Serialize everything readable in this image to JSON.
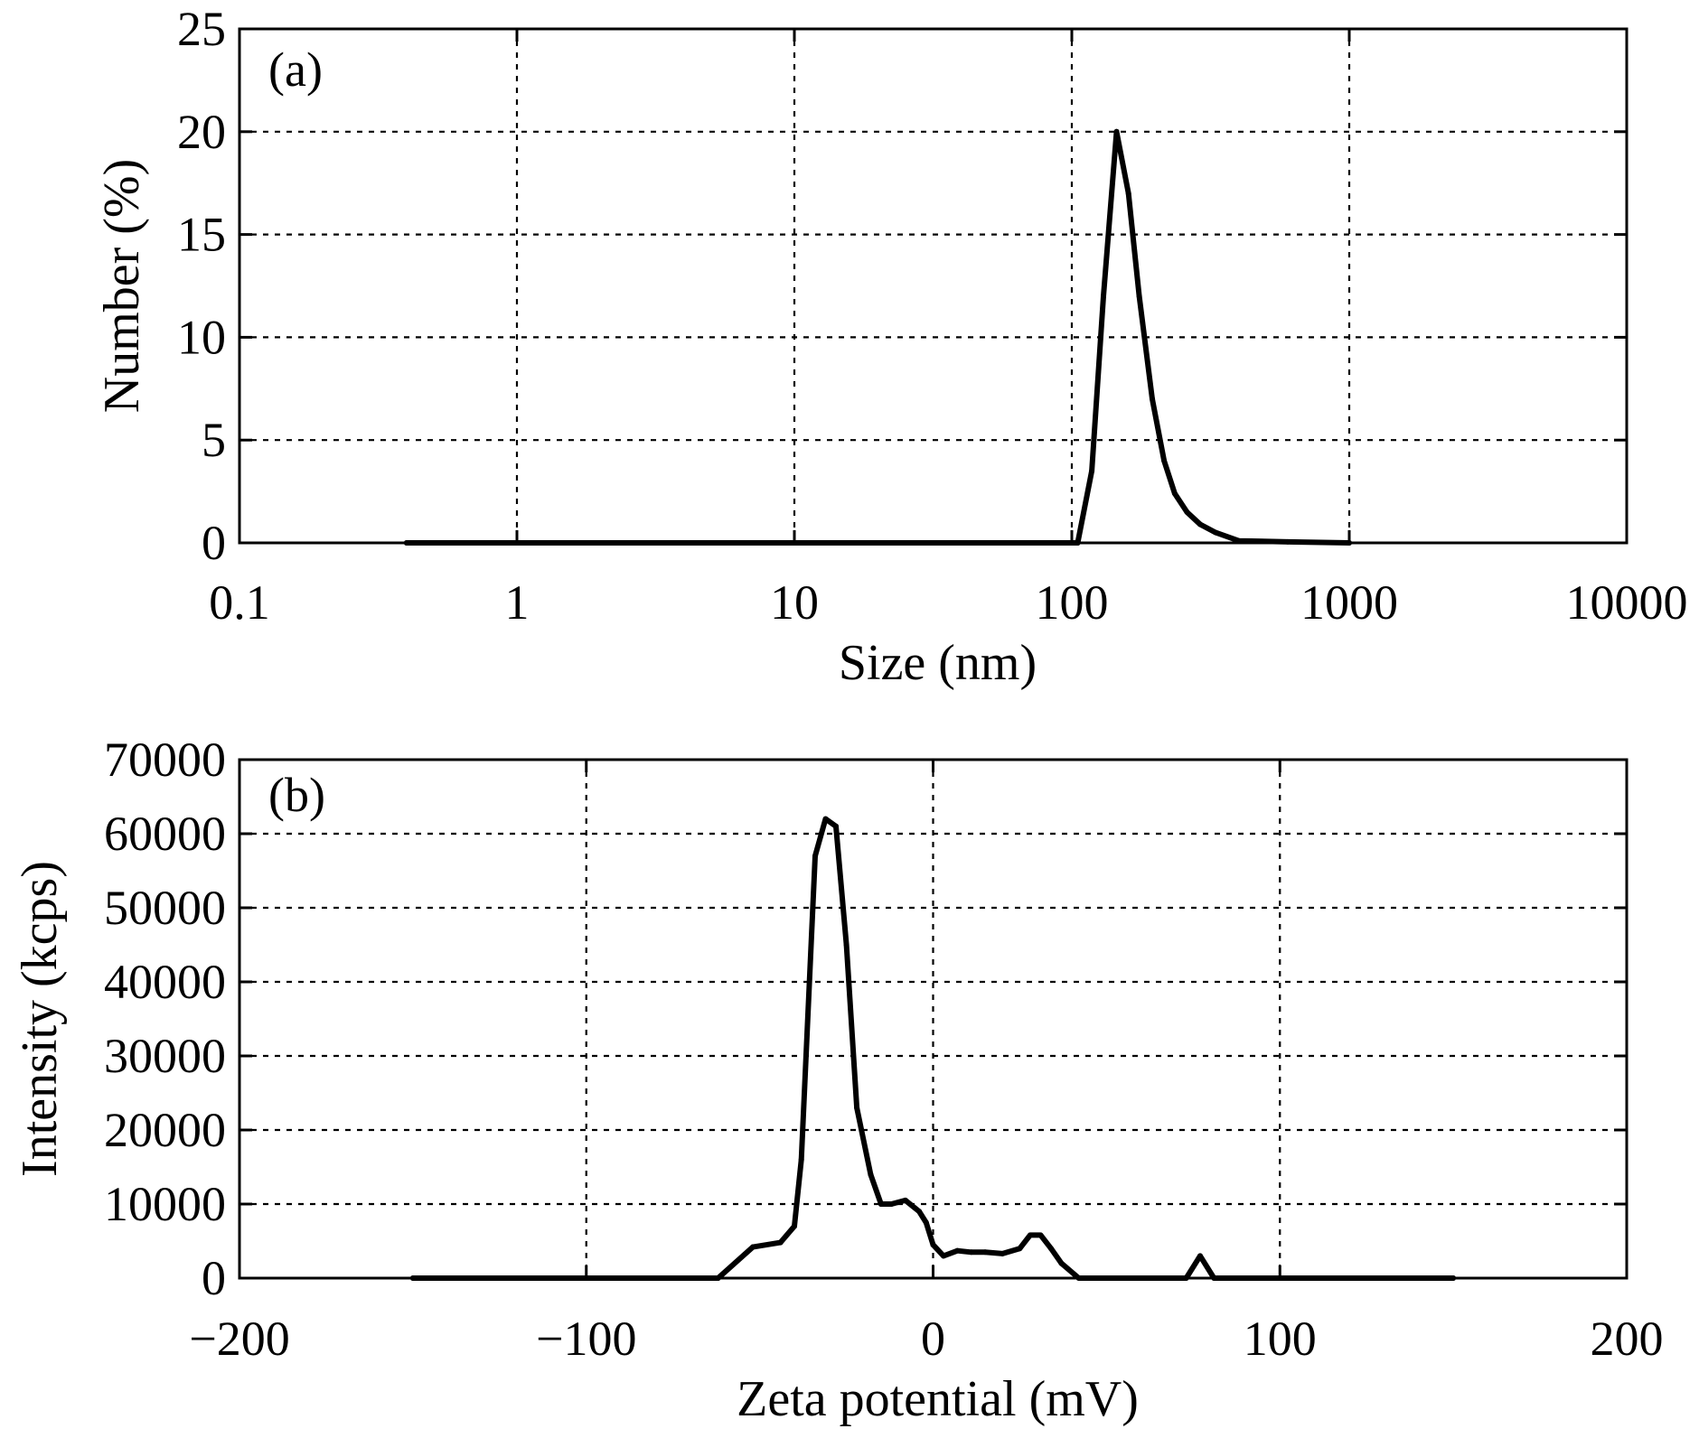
{
  "chart_data": [
    {
      "type": "line",
      "panel_label": "(a)",
      "xlabel": "Size (nm)",
      "ylabel": "Number (%)",
      "xscale": "log",
      "xlim": [
        0.1,
        10000
      ],
      "ylim": [
        0,
        25
      ],
      "grid": true,
      "xticks": [
        0.1,
        1,
        10,
        100,
        1000,
        10000
      ],
      "xtick_labels": [
        "0.1",
        "1",
        "10",
        "100",
        "1000",
        "10000"
      ],
      "yticks": [
        0,
        5,
        10,
        15,
        20,
        25
      ],
      "ytick_labels": [
        "0",
        "5",
        "10",
        "15",
        "20",
        "25"
      ],
      "series": [
        {
          "color": "#000000",
          "x": [
            0.4,
            1,
            10,
            50,
            105,
            118,
            130,
            145,
            160,
            175,
            195,
            215,
            235,
            260,
            290,
            330,
            400,
            600,
            1000
          ],
          "y": [
            0,
            0,
            0,
            0,
            0,
            3.5,
            12,
            20,
            17,
            12,
            7,
            4,
            2.4,
            1.5,
            0.9,
            0.5,
            0.1,
            0.05,
            0
          ]
        }
      ]
    },
    {
      "type": "line",
      "panel_label": "(b)",
      "xlabel": "Zeta potential (mV)",
      "ylabel": "Intensity (kcps)",
      "xscale": "linear",
      "xlim": [
        -200,
        200
      ],
      "ylim": [
        0,
        70000
      ],
      "grid": true,
      "xticks": [
        -200,
        -100,
        0,
        100,
        200
      ],
      "xtick_labels": [
        "−200",
        "−100",
        "0",
        "100",
        "200"
      ],
      "yticks": [
        0,
        10000,
        20000,
        30000,
        40000,
        50000,
        60000,
        70000
      ],
      "ytick_labels": [
        "0",
        "10000",
        "20000",
        "30000",
        "40000",
        "50000",
        "60000",
        "70000"
      ],
      "series": [
        {
          "color": "#000000",
          "x": [
            -150,
            -100,
            -62,
            -52,
            -44,
            -40,
            -38,
            -34,
            -31,
            -28,
            -25,
            -22,
            -18,
            -15,
            -12,
            -8,
            -4,
            -2,
            0,
            3,
            7,
            11,
            15,
            20,
            25,
            28,
            31,
            34,
            37,
            42,
            48,
            55,
            65,
            73,
            77,
            81,
            90,
            100,
            120,
            150
          ],
          "y": [
            0,
            0,
            0,
            4200,
            4800,
            7000,
            16000,
            57000,
            62000,
            61000,
            45000,
            23000,
            14000,
            10000,
            10000,
            10500,
            9000,
            7500,
            4500,
            3000,
            3700,
            3500,
            3500,
            3300,
            4000,
            5800,
            5800,
            4000,
            2000,
            0,
            0,
            0,
            0,
            0,
            3000,
            0,
            0,
            0,
            0,
            0
          ]
        }
      ]
    }
  ]
}
